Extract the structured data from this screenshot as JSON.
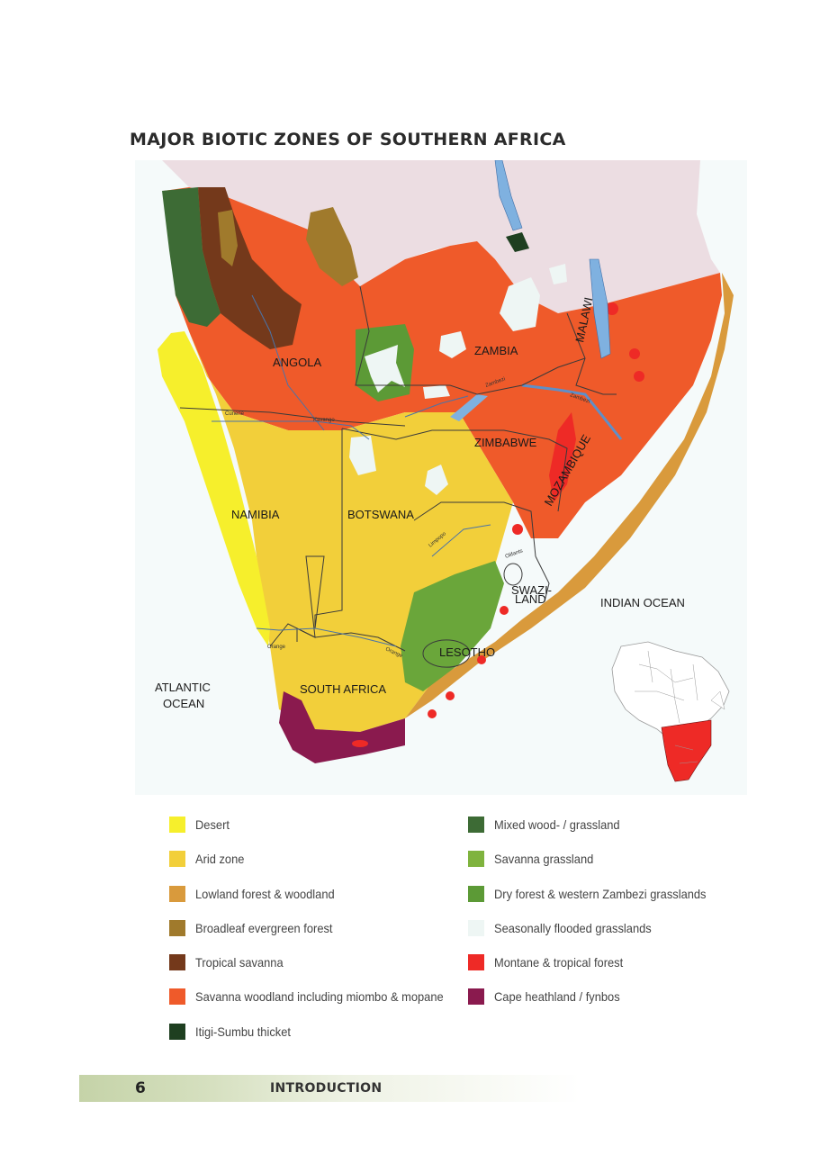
{
  "title": "MAJOR BIOTIC ZONES OF SOUTHERN AFRICA",
  "map": {
    "countries": [
      "ANGOLA",
      "ZAMBIA",
      "MALAWI",
      "ZIMBABWE",
      "MOZAMBIQUE",
      "NAMIBIA",
      "BOTSWANA",
      "SOUTH AFRICA",
      "LESOTHO"
    ],
    "swaziland": [
      "SWAZI-",
      "LAND"
    ],
    "oceans": {
      "indian": "INDIAN OCEAN",
      "atlantic_line1": "ATLANTIC",
      "atlantic_line2": "OCEAN"
    },
    "rivers": [
      "Cunene",
      "Kavango",
      "Zambezi",
      "Zambezi",
      "Limpopo",
      "Olifants",
      "Orange",
      "Orange"
    ]
  },
  "legend": {
    "left": [
      {
        "label": "Desert",
        "color": "#f6ef2c"
      },
      {
        "label": "Arid zone",
        "color": "#f2cf3a"
      },
      {
        "label": "Lowland forest & woodland",
        "color": "#d99a3c"
      },
      {
        "label": "Broadleaf evergreen forest",
        "color": "#a07a2c"
      },
      {
        "label": "Tropical savanna",
        "color": "#74391b"
      },
      {
        "label": "Savanna woodland including miombo & mopane",
        "color": "#ef5a2a"
      },
      {
        "label": "Itigi-Sumbu thicket",
        "color": "#1e3f20"
      }
    ],
    "right": [
      {
        "label": "Mixed wood- / grassland",
        "color": "#3d6b35"
      },
      {
        "label": "Savanna grassland",
        "color": "#7fb33e"
      },
      {
        "label": "Dry forest & western Zambezi grasslands",
        "color": "#5c9a36"
      },
      {
        "label": "Seasonally flooded grasslands",
        "color": "#eef6f4"
      },
      {
        "label": "Montane & tropical forest",
        "color": "#ee2a26"
      },
      {
        "label": "Cape heathland / fynbos",
        "color": "#8a1a4e"
      }
    ]
  },
  "footer": {
    "page_number": "6",
    "section": "INTRODUCTION"
  }
}
